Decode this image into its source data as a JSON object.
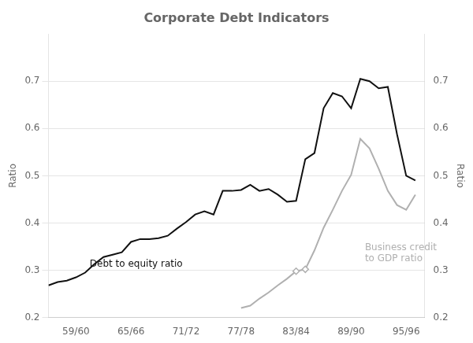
{
  "chart_data": {
    "type": "line",
    "title": "Corporate Debt Indicators",
    "ylabel": "Ratio",
    "y2label": "Ratio",
    "xlim": [
      56,
      97
    ],
    "xticks": [
      {
        "value": 59,
        "label": "59/60"
      },
      {
        "value": 65,
        "label": "65/66"
      },
      {
        "value": 71,
        "label": "71/72"
      },
      {
        "value": 77,
        "label": "77/78"
      },
      {
        "value": 83,
        "label": "83/84"
      },
      {
        "value": 89,
        "label": "89/90"
      },
      {
        "value": 95,
        "label": "95/96"
      }
    ],
    "ylim": [
      0.2,
      0.8
    ],
    "yticks": [
      0.2,
      0.3,
      0.4,
      0.5,
      0.6,
      0.7
    ],
    "y2lim": [
      0.2,
      0.8
    ],
    "y2ticks": [
      0.2,
      0.3,
      0.4,
      0.5,
      0.6,
      0.7
    ],
    "grid": "y",
    "series": [
      {
        "name": "Debt to equity ratio",
        "color": "#111111",
        "x": [
          56,
          57,
          58,
          59,
          60,
          61,
          62,
          63,
          64,
          65,
          66,
          67,
          68,
          69,
          70,
          71,
          72,
          73,
          74,
          75,
          76,
          77,
          78,
          79,
          80,
          81,
          82,
          83,
          84,
          85,
          86,
          87,
          88,
          89,
          90,
          91,
          92,
          93,
          94,
          95,
          96
        ],
        "values": [
          0.268,
          0.275,
          0.278,
          0.285,
          0.295,
          0.313,
          0.328,
          0.333,
          0.338,
          0.36,
          0.366,
          0.366,
          0.368,
          0.373,
          0.388,
          0.402,
          0.418,
          0.425,
          0.418,
          0.468,
          0.468,
          0.47,
          0.481,
          0.468,
          0.472,
          0.46,
          0.445,
          0.447,
          0.535,
          0.548,
          0.643,
          0.675,
          0.668,
          0.643,
          0.705,
          0.7,
          0.685,
          0.688,
          0.588,
          0.5,
          0.49
        ]
      },
      {
        "name": "Business credit\nto GDP ratio",
        "color": "#b0b0b0",
        "x": [
          77,
          78,
          79,
          80,
          81,
          82,
          83,
          84,
          85,
          86,
          87,
          88,
          89,
          90,
          91,
          92,
          93,
          94,
          95,
          96
        ],
        "values": [
          0.22,
          0.225,
          0.24,
          0.253,
          0.268,
          0.282,
          0.298,
          0.302,
          0.342,
          0.39,
          0.428,
          0.468,
          0.502,
          0.578,
          0.558,
          0.515,
          0.468,
          0.438,
          0.428,
          0.46
        ]
      },
      {
        "type": "scatter",
        "marker": "diamond",
        "color": "#b0b0b0",
        "x": [
          83,
          84
        ],
        "values": [
          0.298,
          0.302
        ]
      }
    ],
    "annotations": [
      {
        "text": "Debt to equity ratio",
        "x": 60.5,
        "y": 0.302,
        "color": "#111111"
      },
      {
        "text": "Business credit\nto GDP ratio",
        "x": 90.5,
        "y": 0.358,
        "color": "#b0b0b0"
      }
    ]
  }
}
